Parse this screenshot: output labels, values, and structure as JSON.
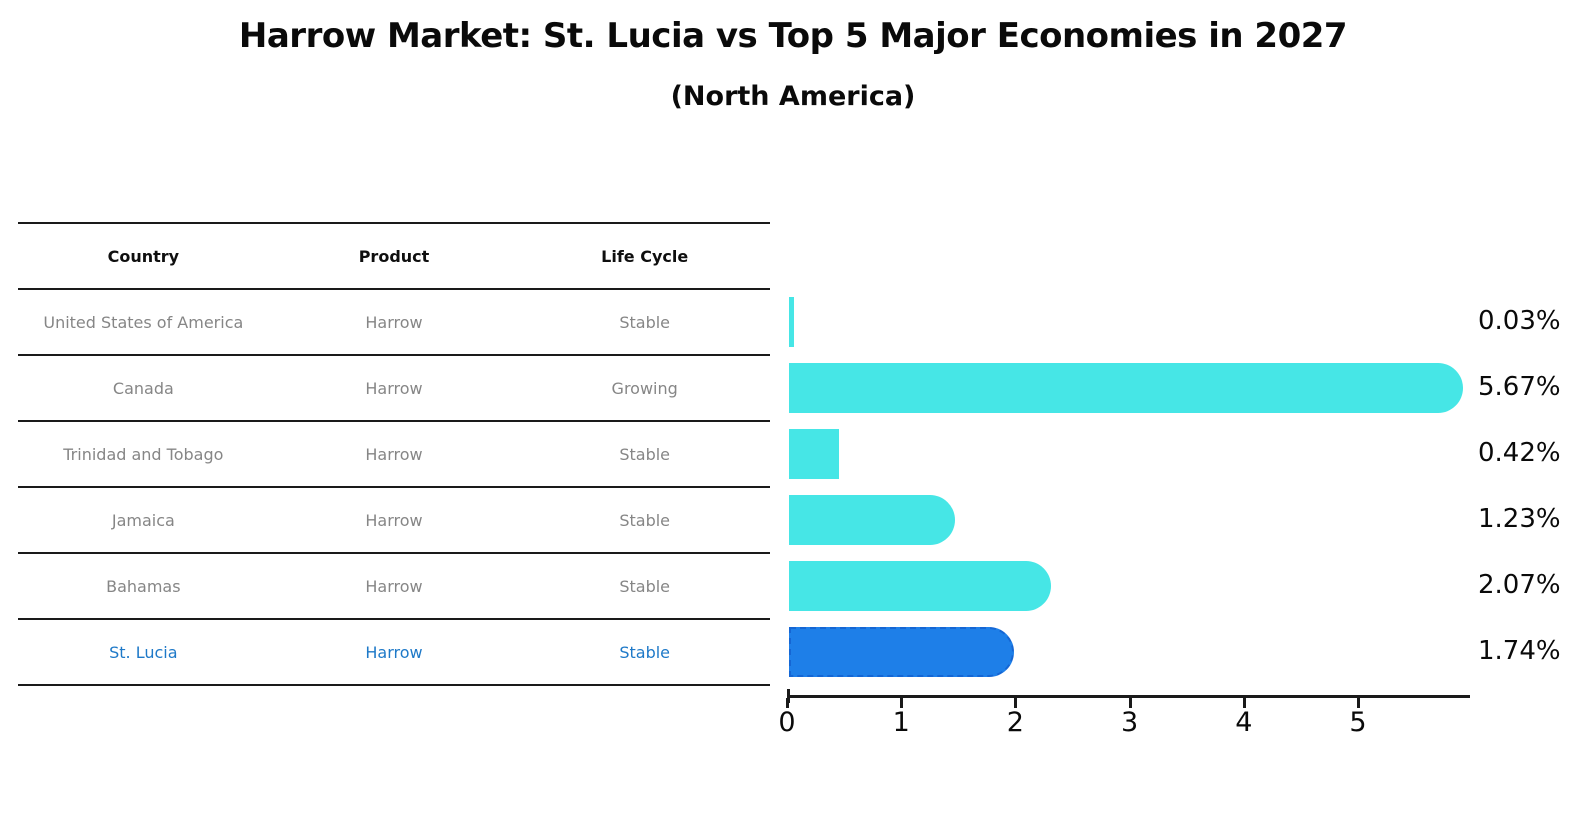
{
  "title": "Harrow Market: St. Lucia vs Top 5 Major Economies in 2027",
  "subtitle": "(North America)",
  "table": {
    "headers": [
      "Country",
      "Product",
      "Life Cycle"
    ],
    "rows": [
      {
        "country": "United States of America",
        "product": "Harrow",
        "life_cycle": "Stable",
        "highlight": false
      },
      {
        "country": "Canada",
        "product": "Harrow",
        "life_cycle": "Growing",
        "highlight": false
      },
      {
        "country": "Trinidad and Tobago",
        "product": "Harrow",
        "life_cycle": "Stable",
        "highlight": false
      },
      {
        "country": "Jamaica",
        "product": "Harrow",
        "life_cycle": "Stable",
        "highlight": false
      },
      {
        "country": "Bahamas",
        "product": "Harrow",
        "life_cycle": "Stable",
        "highlight": false
      },
      {
        "country": "St. Lucia",
        "product": "Harrow",
        "life_cycle": "Stable",
        "highlight": true
      }
    ]
  },
  "chart_data": {
    "type": "bar",
    "orientation": "horizontal",
    "title": "Harrow Market: St. Lucia vs Top 5 Major Economies in 2027",
    "subtitle": "(North America)",
    "categories": [
      "United States of America",
      "Canada",
      "Trinidad and Tobago",
      "Jamaica",
      "Bahamas",
      "St. Lucia"
    ],
    "values": [
      0.03,
      5.67,
      0.42,
      1.23,
      2.07,
      1.74
    ],
    "value_labels": [
      "0.03%",
      "5.67%",
      "0.42%",
      "1.23%",
      "2.07%",
      "1.74%"
    ],
    "highlight_index": 5,
    "xlim": [
      0,
      6
    ],
    "x_ticks": [
      "0",
      "1",
      "2",
      "3",
      "4",
      "5"
    ],
    "grid": false,
    "legend": false,
    "colors": {
      "bar": "#46e6e6",
      "highlight_bar": "#1e7fe8",
      "highlight_border": "#1566d4",
      "highlight_text": "#1e79c8",
      "row_text": "#868686",
      "axis": "#1a1a1a"
    }
  }
}
